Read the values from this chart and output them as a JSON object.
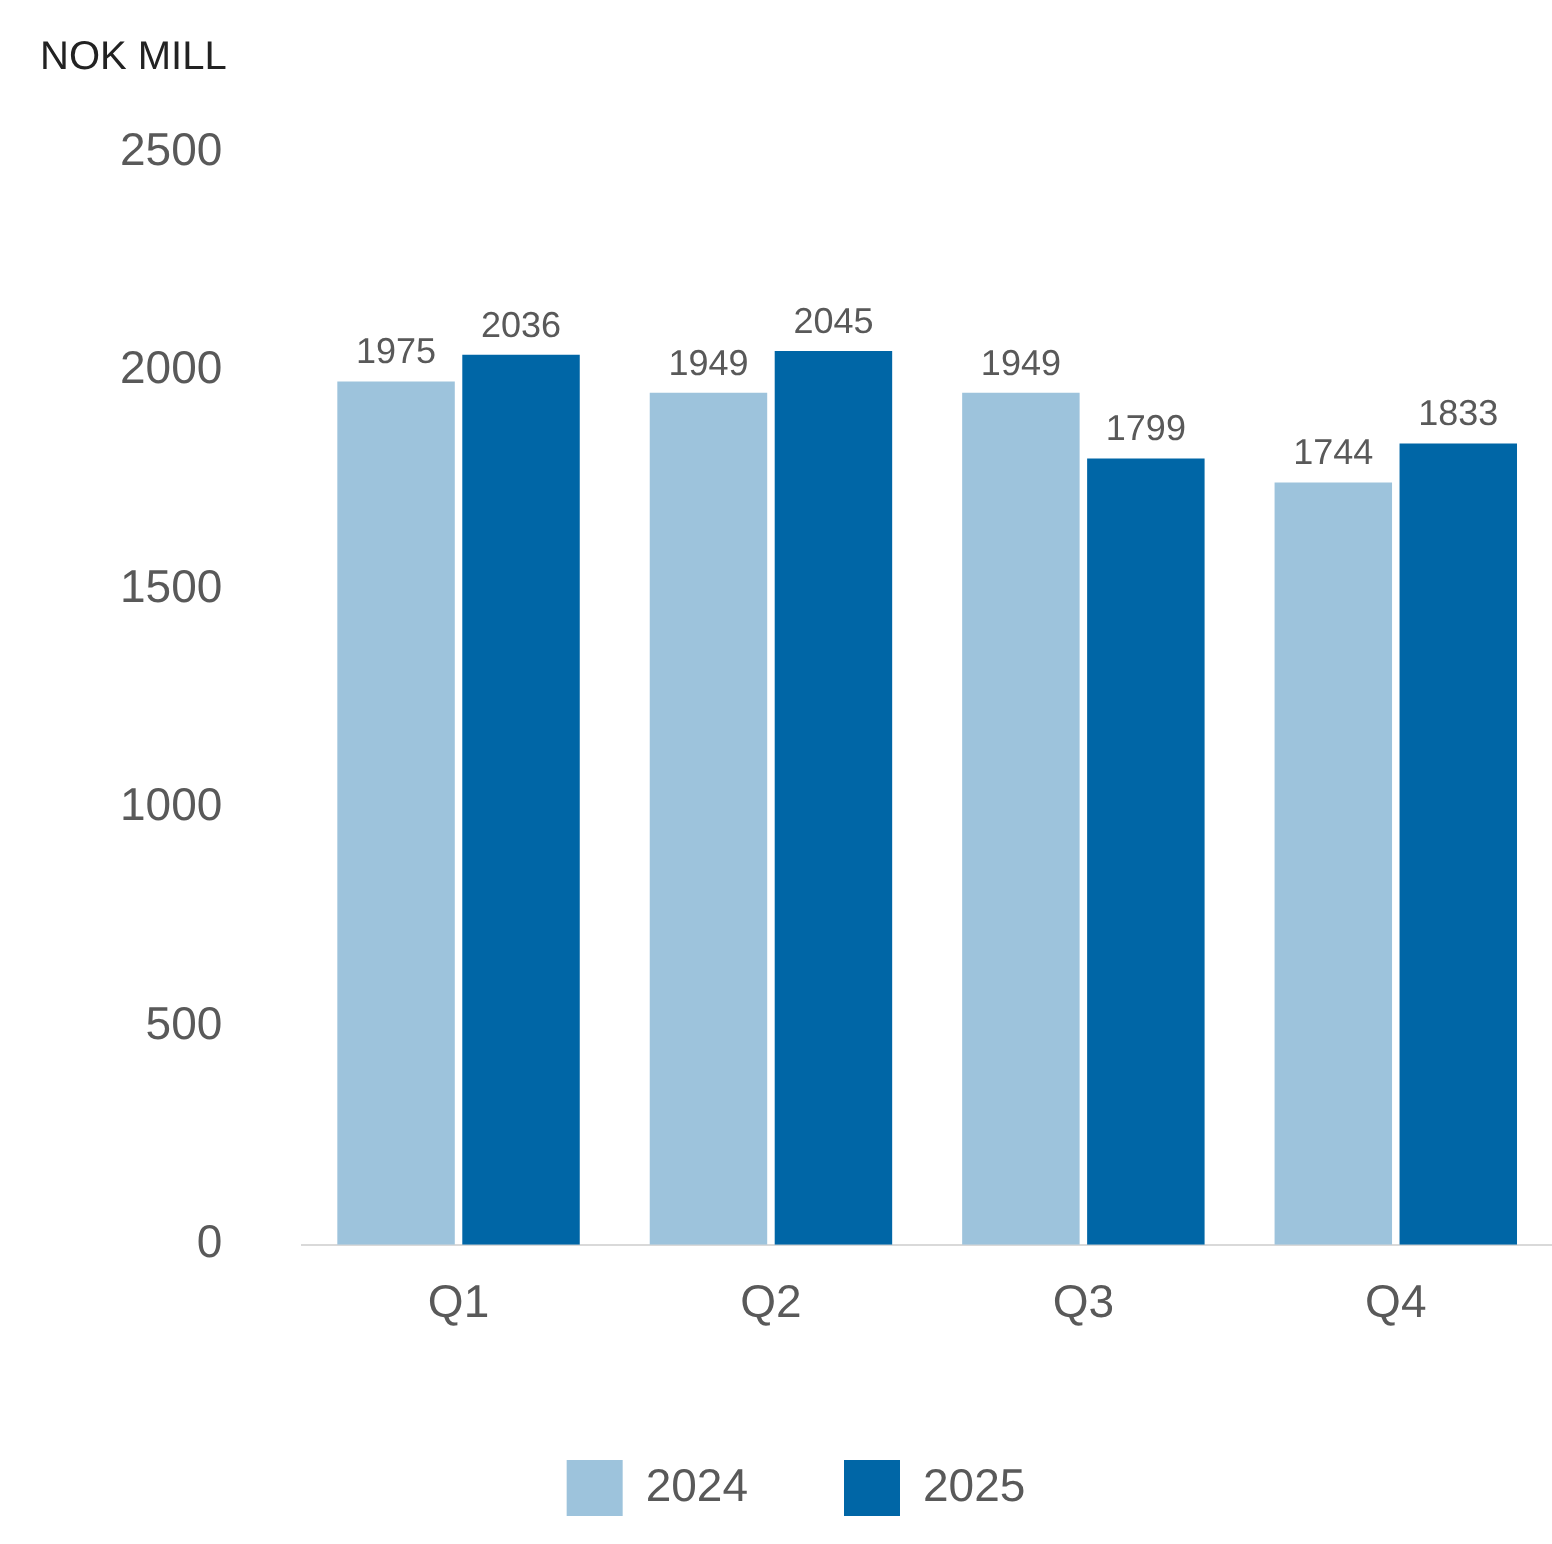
{
  "chart_data": {
    "type": "bar",
    "ylabel": "NOK MILL",
    "categories": [
      "Q1",
      "Q2",
      "Q3",
      "Q4"
    ],
    "series": [
      {
        "name": "2024",
        "color": "#9dc3dc",
        "values": [
          1975,
          1949,
          1949,
          1744
        ]
      },
      {
        "name": "2025",
        "color": "#0066a6",
        "values": [
          2036,
          2045,
          1799,
          1833
        ]
      }
    ],
    "ylim": [
      0,
      2500
    ],
    "yticks": [
      0,
      500,
      1000,
      1500,
      2000,
      2500
    ],
    "grid": false,
    "legend": "bottom",
    "data_labels": true
  }
}
